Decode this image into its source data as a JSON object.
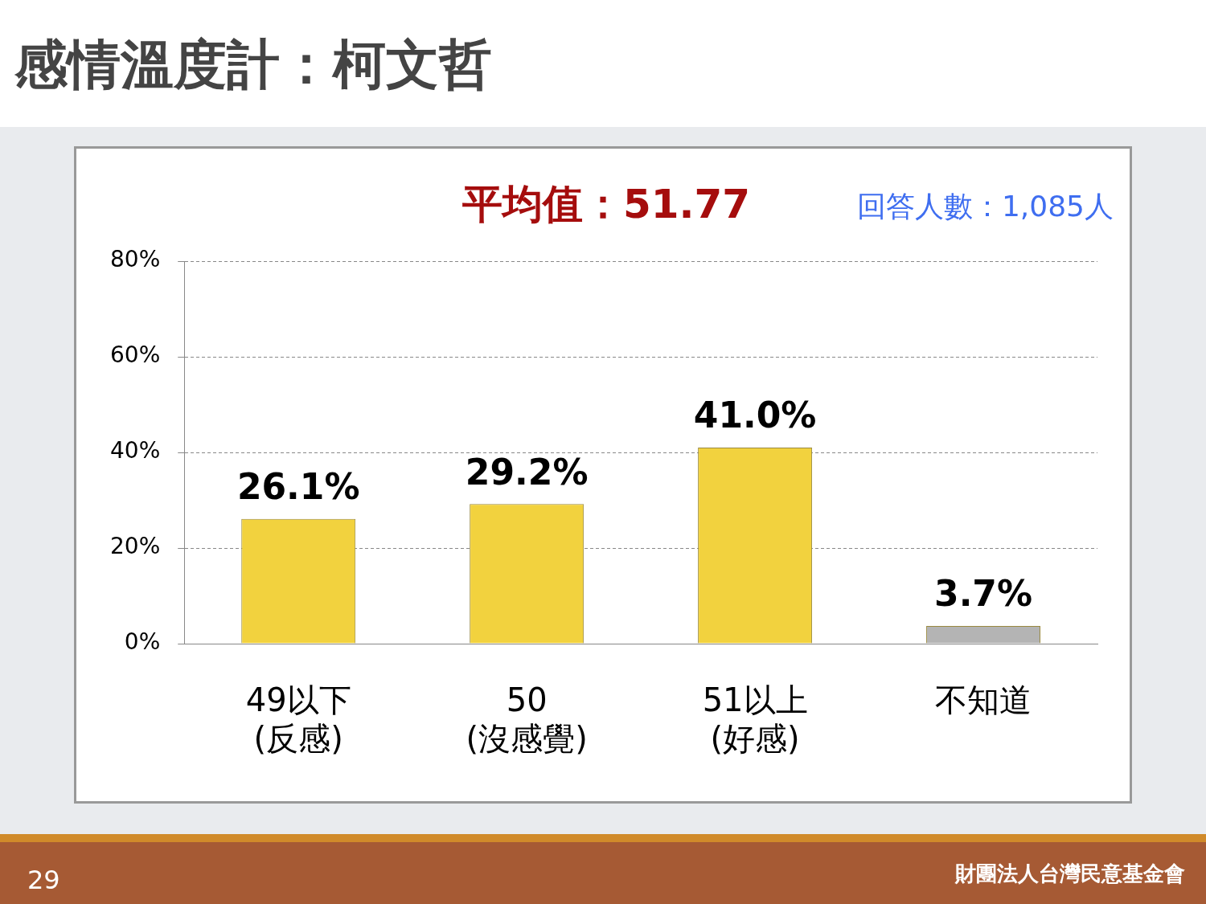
{
  "chart_data": {
    "type": "bar",
    "title": "感情溫度計：柯文哲",
    "categories": [
      "49以下\n(反感)",
      "50\n(沒感覺)",
      "51以上\n(好感)",
      "不知道"
    ],
    "values": [
      26.1,
      29.2,
      41.0,
      3.7
    ],
    "value_labels": [
      "26.1%",
      "29.2%",
      "41.0%",
      "3.7%"
    ],
    "colors": [
      "#f2d23e",
      "#f2d23e",
      "#f2d23e",
      "#b4b4b4"
    ],
    "ylim": [
      0,
      80
    ],
    "yticks": [
      {
        "value": 0,
        "label": "0%"
      },
      {
        "value": 20,
        "label": "20%"
      },
      {
        "value": 40,
        "label": "40%"
      },
      {
        "value": 60,
        "label": "60%"
      },
      {
        "value": 80,
        "label": "80%"
      }
    ],
    "grid": "y",
    "legend": false,
    "annotations": [
      "平均值：51.77",
      "回答人數：1,085人",
      "29",
      "財團法人台灣民意基金會"
    ]
  }
}
